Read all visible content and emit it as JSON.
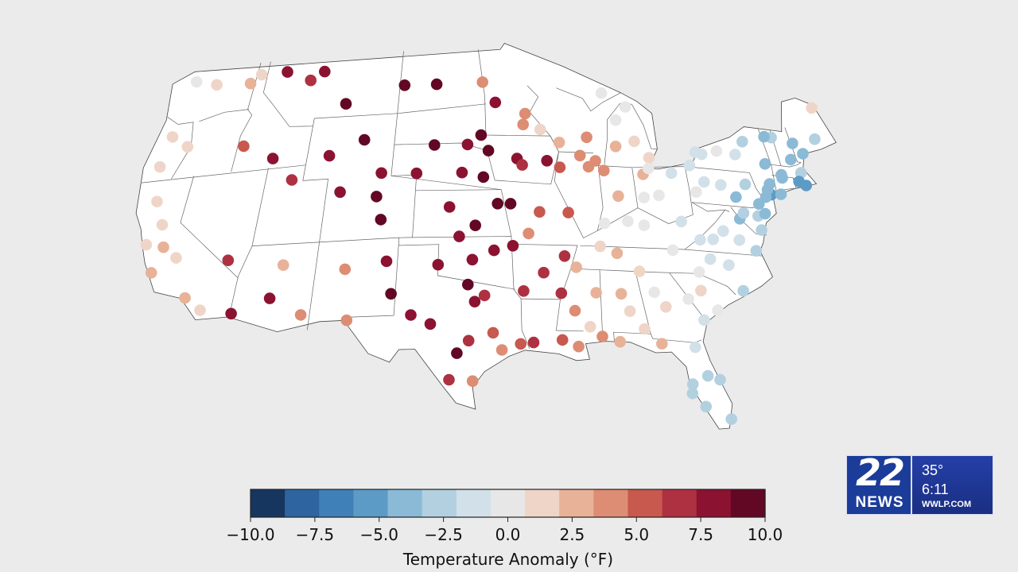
{
  "map": {
    "colormap": [
      "#2e0e3d",
      "#15315e",
      "#2f64a0",
      "#3f80b8",
      "#5f9dc6",
      "#8dbbd7",
      "#b5d2e1",
      "#d2e1ea",
      "#e8e8e8",
      "#efd6c9",
      "#e9b39b",
      "#de8d73",
      "#c8584f",
      "#ad3040",
      "#8c1232",
      "#620824"
    ],
    "colorbar": {
      "label": "Temperature Anomaly (°F)",
      "ticks": [
        "−10.0",
        "−7.5",
        "−5.0",
        "−2.5",
        "0.0",
        "2.5",
        "5.0",
        "7.5",
        "10.0"
      ],
      "range": [
        -10,
        10
      ]
    },
    "stations": [
      [
        -122.5,
        48.3,
        0.5
      ],
      [
        -120.5,
        47.9,
        1.7
      ],
      [
        -117.4,
        47.7,
        3.0
      ],
      [
        -116.6,
        48.2,
        0.8
      ],
      [
        -114.3,
        48.2,
        7.5
      ],
      [
        -112.0,
        47.5,
        7.2
      ],
      [
        -110.9,
        48.0,
        7.5
      ],
      [
        -108.5,
        45.8,
        10.0
      ],
      [
        -103.6,
        46.8,
        10.0
      ],
      [
        -100.8,
        46.8,
        8.8
      ],
      [
        -96.8,
        46.9,
        4.0
      ],
      [
        -95.7,
        45.6,
        8.5
      ],
      [
        -93.2,
        44.9,
        4.5
      ],
      [
        -93.4,
        44.2,
        3.5
      ],
      [
        -92.0,
        43.9,
        1.8
      ],
      [
        -90.5,
        43.1,
        2.6
      ],
      [
        -88.2,
        43.5,
        3.4
      ],
      [
        -88.9,
        42.3,
        3.4
      ],
      [
        -87.7,
        42.0,
        3.6
      ],
      [
        -88.3,
        41.6,
        4.0
      ],
      [
        -87.1,
        41.4,
        3.4
      ],
      [
        -85.9,
        43.0,
        2.0
      ],
      [
        -84.3,
        43.4,
        1.5
      ],
      [
        -83.3,
        42.4,
        1.6
      ],
      [
        -84.0,
        41.3,
        2.5
      ],
      [
        -85.6,
        44.7,
        0.4
      ],
      [
        -84.6,
        45.6,
        0.1
      ],
      [
        -86.5,
        46.4,
        -0.2
      ],
      [
        -122.9,
        44.8,
        1.1
      ],
      [
        -123.1,
        42.9,
        1.4
      ],
      [
        -121.3,
        44.0,
        0.9
      ],
      [
        -122.4,
        40.6,
        0.8
      ],
      [
        -121.4,
        39.0,
        1.7
      ],
      [
        -120.8,
        37.5,
        2.0
      ],
      [
        -119.6,
        36.7,
        1.2
      ],
      [
        -122.2,
        37.8,
        0.9
      ],
      [
        -121.2,
        35.9,
        2.3
      ],
      [
        -118.2,
        34.0,
        2.6
      ],
      [
        -116.9,
        33.1,
        1.7
      ],
      [
        -115.6,
        36.2,
        6.2
      ],
      [
        -112.0,
        33.5,
        7.8
      ],
      [
        -111.4,
        35.6,
        2.2
      ],
      [
        -114.6,
        32.7,
        8.4
      ],
      [
        -109.6,
        32.3,
        3.8
      ],
      [
        -116.5,
        43.6,
        5.5
      ],
      [
        -113.8,
        42.6,
        8.1
      ],
      [
        -111.9,
        41.1,
        6.8
      ],
      [
        -109.2,
        42.5,
        7.8
      ],
      [
        -106.5,
        43.4,
        10.0
      ],
      [
        -104.8,
        41.2,
        7.8
      ],
      [
        -107.9,
        40.1,
        7.6
      ],
      [
        -105.0,
        39.7,
        9.6
      ],
      [
        -104.5,
        38.2,
        9.3
      ],
      [
        -106.8,
        35.1,
        4.5
      ],
      [
        -103.8,
        35.5,
        8.0
      ],
      [
        -103.3,
        33.4,
        9.0
      ],
      [
        -106.3,
        31.8,
        3.6
      ],
      [
        -101.8,
        32.0,
        8.4
      ],
      [
        -100.4,
        31.4,
        8.5
      ],
      [
        -97.7,
        30.3,
        7.0
      ],
      [
        -98.5,
        29.5,
        9.2
      ],
      [
        -99.0,
        27.8,
        6.3
      ],
      [
        -97.4,
        27.7,
        3.5
      ],
      [
        -95.4,
        29.7,
        3.9
      ],
      [
        -96.0,
        30.8,
        5.5
      ],
      [
        -94.1,
        30.1,
        5.0
      ],
      [
        -97.3,
        32.8,
        8.0
      ],
      [
        -97.8,
        33.9,
        10.0
      ],
      [
        -96.6,
        33.2,
        6.6
      ],
      [
        -95.9,
        36.1,
        7.8
      ],
      [
        -97.5,
        35.5,
        8.0
      ],
      [
        -100.0,
        35.2,
        8.2
      ],
      [
        -98.5,
        37.0,
        7.8
      ],
      [
        -97.3,
        37.7,
        9.5
      ],
      [
        -99.3,
        38.9,
        8.0
      ],
      [
        -95.6,
        39.1,
        9.3
      ],
      [
        -94.6,
        39.1,
        9.8
      ],
      [
        -96.7,
        40.8,
        9.1
      ],
      [
        -98.4,
        41.1,
        8.1
      ],
      [
        -102.0,
        41.1,
        8.1
      ],
      [
        -100.7,
        42.9,
        10.0
      ],
      [
        -98.0,
        42.9,
        8.3
      ],
      [
        -96.9,
        43.5,
        9.9
      ],
      [
        -96.3,
        42.5,
        9.4
      ],
      [
        -94.0,
        42.0,
        8.0
      ],
      [
        -93.6,
        41.6,
        6.9
      ],
      [
        -91.6,
        41.9,
        7.9
      ],
      [
        -90.6,
        41.5,
        5.6
      ],
      [
        -90.2,
        38.6,
        5.0
      ],
      [
        -92.4,
        38.6,
        4.7
      ],
      [
        -93.3,
        37.2,
        3.8
      ],
      [
        -94.5,
        36.4,
        8.4
      ],
      [
        -92.3,
        34.7,
        7.3
      ],
      [
        -93.8,
        33.5,
        7.0
      ],
      [
        -91.1,
        33.4,
        6.5
      ],
      [
        -90.2,
        32.3,
        4.0
      ],
      [
        -91.2,
        30.4,
        5.2
      ],
      [
        -93.2,
        30.2,
        6.8
      ],
      [
        -90.1,
        30.0,
        3.9
      ],
      [
        -88.4,
        30.7,
        3.5
      ],
      [
        -89.2,
        31.3,
        1.3
      ],
      [
        -88.6,
        33.5,
        2.0
      ],
      [
        -89.9,
        35.1,
        2.6
      ],
      [
        -90.7,
        35.8,
        6.0
      ],
      [
        -88.0,
        36.5,
        1.4
      ],
      [
        -86.8,
        36.1,
        2.5
      ],
      [
        -85.3,
        35.0,
        1.7
      ],
      [
        -86.8,
        33.5,
        2.2
      ],
      [
        -86.3,
        32.4,
        1.7
      ],
      [
        -84.4,
        33.7,
        0.4
      ],
      [
        -85.4,
        31.3,
        1.9
      ],
      [
        -87.2,
        30.4,
        2.9
      ],
      [
        -84.3,
        30.4,
        2.0
      ],
      [
        -83.7,
        32.8,
        1.7
      ],
      [
        -82.0,
        30.3,
        -1.3
      ],
      [
        -82.5,
        27.9,
        -2.6
      ],
      [
        -81.8,
        26.5,
        -3.1
      ],
      [
        -80.2,
        25.8,
        -2.9
      ],
      [
        -80.6,
        28.3,
        -2.7
      ],
      [
        -81.4,
        28.5,
        -3.1
      ],
      [
        -82.6,
        27.3,
        -2.9
      ],
      [
        -86.2,
        39.8,
        2.2
      ],
      [
        -87.5,
        38.0,
        0.6
      ],
      [
        -85.7,
        38.2,
        0.4
      ],
      [
        -84.5,
        38.0,
        0.3
      ],
      [
        -83.0,
        40.0,
        0.1
      ],
      [
        -84.2,
        39.8,
        0.6
      ],
      [
        -81.7,
        41.5,
        -1.2
      ],
      [
        -80.0,
        40.4,
        -0.4
      ],
      [
        -81.6,
        38.4,
        -0.8
      ],
      [
        -83.5,
        41.7,
        0.2
      ],
      [
        -82.6,
        36.5,
        -0.4
      ],
      [
        -80.9,
        35.2,
        -0.6
      ],
      [
        -79.9,
        36.1,
        -0.8
      ],
      [
        -78.6,
        35.8,
        -1.0
      ],
      [
        -77.9,
        34.2,
        -2.3
      ],
      [
        -81.0,
        34.0,
        1.0
      ],
      [
        -80.0,
        32.8,
        0.0
      ],
      [
        -81.1,
        32.1,
        -1.5
      ],
      [
        -82.0,
        33.4,
        -0.6
      ],
      [
        -79.4,
        43.0,
        -1.3
      ],
      [
        -78.9,
        42.9,
        -1.4
      ],
      [
        -77.6,
        43.2,
        -0.3
      ],
      [
        -76.1,
        43.1,
        -2.0
      ],
      [
        -75.2,
        44.0,
        -2.5
      ],
      [
        -73.8,
        42.7,
        -3.6
      ],
      [
        -72.7,
        41.9,
        -4.5
      ],
      [
        -74.0,
        40.7,
        -4.8
      ],
      [
        -73.9,
        41.4,
        -3.9
      ],
      [
        -75.2,
        40.0,
        -3.9
      ],
      [
        -76.9,
        40.3,
        -3.6
      ],
      [
        -75.5,
        39.2,
        -3.2
      ],
      [
        -77.0,
        38.9,
        -3.7
      ],
      [
        -76.6,
        39.3,
        -3.3
      ],
      [
        -76.3,
        36.9,
        -3.3
      ],
      [
        -75.5,
        38.3,
        -3.1
      ],
      [
        -78.5,
        38.0,
        -1.4
      ],
      [
        -77.4,
        37.5,
        -1.9
      ],
      [
        -79.4,
        37.4,
        -1.0
      ],
      [
        -80.4,
        37.3,
        -0.7
      ],
      [
        -71.0,
        42.4,
        -3.0
      ],
      [
        -71.4,
        41.8,
        -5.2
      ],
      [
        -70.9,
        41.6,
        -5.0
      ],
      [
        -72.7,
        42.1,
        -4.1
      ],
      [
        -72.6,
        44.5,
        -2.5
      ],
      [
        -73.2,
        44.5,
        -3.6
      ],
      [
        -71.5,
        43.2,
        -3.8
      ],
      [
        -70.3,
        43.7,
        -3.9
      ],
      [
        -70.9,
        44.3,
        -4.0
      ],
      [
        -68.8,
        44.8,
        -3.0
      ],
      [
        -68.0,
        46.9,
        1.2
      ],
      [
        -74.5,
        40.5,
        -3.7
      ],
      [
        -75.9,
        41.2,
        -2.8
      ],
      [
        -77.9,
        41.0,
        -1.8
      ],
      [
        -79.2,
        41.1,
        -1.6
      ],
      [
        -80.1,
        42.1,
        -1.2
      ],
      [
        -74.9,
        39.4,
        -4.2
      ],
      [
        -74.2,
        41.0,
        -3.6
      ],
      [
        -73.2,
        40.8,
        -3.4
      ]
    ]
  },
  "station": {
    "channel": "22",
    "brand": "NEWS",
    "temp": "35°",
    "time": "6:11",
    "site": "WWLP.COM"
  }
}
